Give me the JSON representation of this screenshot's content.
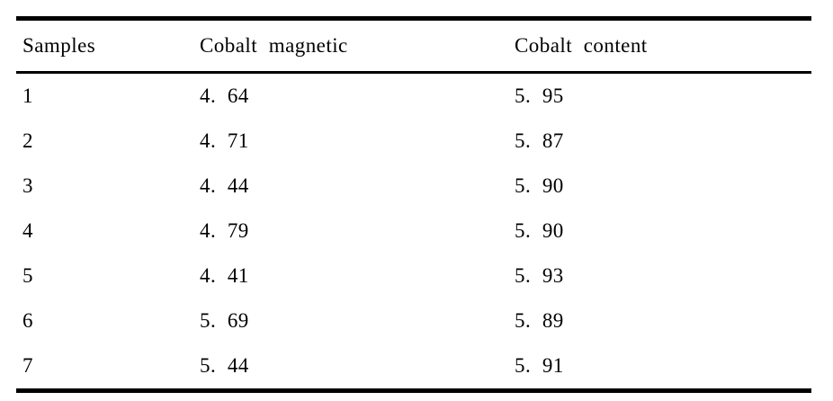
{
  "table": {
    "columns": [
      {
        "label": "Samples"
      },
      {
        "label": "Cobalt magnetic"
      },
      {
        "label": "Cobalt content"
      }
    ],
    "rows": [
      {
        "sample": "1",
        "magnetic": "4. 64",
        "content": "5. 95"
      },
      {
        "sample": "2",
        "magnetic": "4. 71",
        "content": "5. 87"
      },
      {
        "sample": "3",
        "magnetic": "4. 44",
        "content": "5. 90"
      },
      {
        "sample": "4",
        "magnetic": "4. 79",
        "content": "5. 90"
      },
      {
        "sample": "5",
        "magnetic": "4. 41",
        "content": "5. 93"
      },
      {
        "sample": "6",
        "magnetic": "5. 69",
        "content": "5. 89"
      },
      {
        "sample": "7",
        "magnetic": "5. 44",
        "content": "5. 91"
      }
    ]
  },
  "chart_data": {
    "type": "table",
    "title": "",
    "categories": [
      "1",
      "2",
      "3",
      "4",
      "5",
      "6",
      "7"
    ],
    "series": [
      {
        "name": "Cobalt magnetic",
        "values": [
          4.64,
          4.71,
          4.44,
          4.79,
          4.41,
          5.69,
          5.44
        ]
      },
      {
        "name": "Cobalt content",
        "values": [
          5.95,
          5.87,
          5.9,
          5.9,
          5.93,
          5.89,
          5.91
        ]
      }
    ]
  }
}
